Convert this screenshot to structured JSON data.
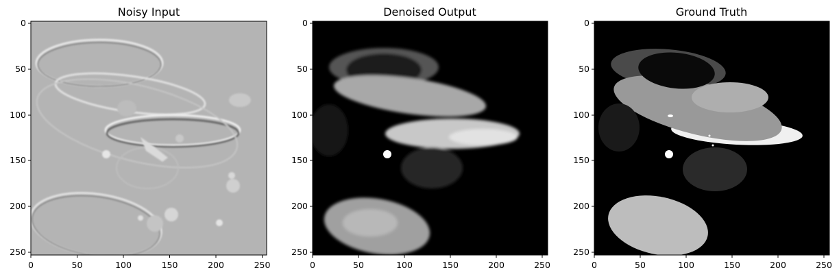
{
  "figure": {
    "panels": [
      {
        "id": "noisy",
        "title": "Noisy Input",
        "x_ticks": [
          "0",
          "50",
          "100",
          "150",
          "200",
          "250"
        ],
        "y_ticks": [
          "0",
          "50",
          "100",
          "150",
          "200",
          "250"
        ]
      },
      {
        "id": "denoised",
        "title": "Denoised Output",
        "x_ticks": [
          "0",
          "50",
          "100",
          "150",
          "200",
          "250"
        ],
        "y_ticks": [
          "0",
          "50",
          "100",
          "150",
          "200",
          "250"
        ]
      },
      {
        "id": "truth",
        "title": "Ground Truth",
        "x_ticks": [
          "0",
          "50",
          "100",
          "150",
          "200",
          "250"
        ],
        "y_ticks": [
          "0",
          "50",
          "100",
          "150",
          "200",
          "250"
        ]
      }
    ]
  },
  "colors": {
    "noisy_background": "#b4b4b4",
    "image_background": "#000000"
  }
}
